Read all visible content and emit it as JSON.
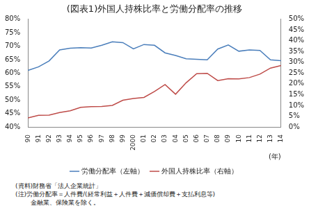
{
  "chart_data": {
    "type": "line",
    "title": "(図表1)外国人持株比率と労働分配率の推移",
    "x_label": "(年)",
    "categories": [
      "90",
      "91",
      "92",
      "93",
      "94",
      "95",
      "96",
      "97",
      "98",
      "99",
      "2000",
      "01",
      "02",
      "03",
      "04",
      "05",
      "06",
      "07",
      "08",
      "09",
      "10",
      "11",
      "12",
      "13",
      "14"
    ],
    "series": [
      {
        "name": "労働分配率（左軸）",
        "color": "#4a7ebb",
        "axis": "y",
        "values": [
          61.0,
          62.3,
          64.5,
          68.6,
          69.2,
          69.4,
          69.3,
          70.3,
          71.6,
          71.3,
          69.0,
          70.6,
          70.3,
          67.5,
          66.5,
          65.3,
          65.1,
          64.9,
          68.9,
          70.4,
          68.1,
          68.6,
          68.4,
          64.9,
          64.6
        ]
      },
      {
        "name": "外国人持株比率（右軸）",
        "color": "#be4b48",
        "axis": "y2",
        "values": [
          4.2,
          5.4,
          5.5,
          6.7,
          7.5,
          9.1,
          9.4,
          9.5,
          10.0,
          12.4,
          13.2,
          13.7,
          16.5,
          19.7,
          15.2,
          20.5,
          24.7,
          24.9,
          21.5,
          22.4,
          22.3,
          22.9,
          24.5,
          27.3,
          28.5
        ]
      }
    ],
    "ylim": [
      40,
      80
    ],
    "yticks": [
      {
        "value": 40,
        "label": "40%"
      },
      {
        "value": 45,
        "label": "45%"
      },
      {
        "value": 50,
        "label": "50%"
      },
      {
        "value": 55,
        "label": "55%"
      },
      {
        "value": 60,
        "label": "60%"
      },
      {
        "value": 65,
        "label": "65%"
      },
      {
        "value": 70,
        "label": "70%"
      },
      {
        "value": 75,
        "label": "75%"
      },
      {
        "value": 80,
        "label": "80%"
      }
    ],
    "y2lim": [
      0,
      50
    ],
    "y2ticks": [
      {
        "value": 0,
        "label": "0%"
      },
      {
        "value": 5,
        "label": "5%"
      },
      {
        "value": 10,
        "label": "10%"
      },
      {
        "value": 15,
        "label": "15%"
      },
      {
        "value": 20,
        "label": "20%"
      },
      {
        "value": 25,
        "label": "25%"
      },
      {
        "value": 30,
        "label": "30%"
      },
      {
        "value": 35,
        "label": "35%"
      },
      {
        "value": 40,
        "label": "40%"
      },
      {
        "value": 45,
        "label": "45%"
      },
      {
        "value": 50,
        "label": "50%"
      }
    ],
    "grid": false,
    "legend": "bottom",
    "marker": "none",
    "notes": [
      "(資料)財務省「法人企業統計」",
      "(注)労働分配率＝人件費/(経常利益＋人件費＋減価償却費＋支払利息等)",
      "金融業、保険業を除く。"
    ]
  }
}
